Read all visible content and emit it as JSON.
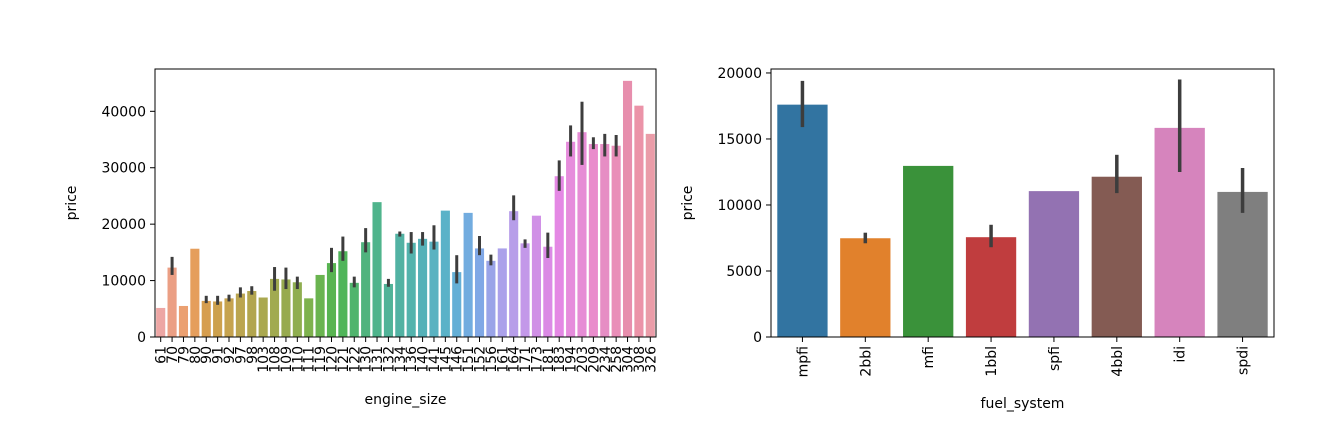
{
  "chart_data": [
    {
      "type": "bar",
      "xlabel": "engine_size",
      "ylabel": "price",
      "ylim": [
        0,
        47500
      ],
      "yticks": [
        0,
        10000,
        20000,
        30000,
        40000
      ],
      "grid": false,
      "categories": [
        "61",
        "70",
        "79",
        "80",
        "90",
        "91",
        "92",
        "97",
        "98",
        "103",
        "108",
        "109",
        "110",
        "111",
        "119",
        "120",
        "121",
        "122",
        "130",
        "131",
        "132",
        "134",
        "136",
        "140",
        "141",
        "145",
        "146",
        "151",
        "152",
        "156",
        "161",
        "164",
        "171",
        "173",
        "181",
        "183",
        "194",
        "203",
        "209",
        "234",
        "258",
        "304",
        "308",
        "326"
      ],
      "values": [
        5151,
        12300,
        5500,
        15645,
        6400,
        6300,
        6850,
        7700,
        8150,
        7000,
        10300,
        10200,
        9700,
        6850,
        11000,
        13100,
        15200,
        9600,
        16800,
        23900,
        9400,
        18300,
        16700,
        17400,
        16900,
        22400,
        11500,
        22000,
        15700,
        13500,
        15700,
        22300,
        16600,
        21500,
        16000,
        28500,
        34600,
        36300,
        34200,
        34200,
        33900,
        45400,
        41000,
        36000
      ],
      "error_low": [
        null,
        11000,
        null,
        null,
        6000,
        5700,
        6300,
        7000,
        7500,
        null,
        8200,
        8500,
        8500,
        null,
        null,
        11500,
        13500,
        8800,
        15000,
        null,
        8900,
        17800,
        14800,
        16200,
        15500,
        null,
        9500,
        null,
        14500,
        12700,
        null,
        20700,
        15800,
        null,
        14000,
        25900,
        32000,
        30500,
        33300,
        32000,
        32000,
        null,
        null,
        null
      ],
      "error_high": [
        null,
        14200,
        null,
        null,
        7300,
        7300,
        7500,
        8800,
        9000,
        null,
        12400,
        12300,
        10700,
        null,
        null,
        15800,
        17800,
        10700,
        19300,
        null,
        10300,
        18700,
        18600,
        18600,
        19800,
        null,
        14500,
        null,
        17900,
        14600,
        null,
        25100,
        17300,
        null,
        18500,
        31300,
        37500,
        41700,
        35400,
        36000,
        35800,
        null,
        null,
        null
      ],
      "colors": [
        "#eda6a4",
        "#eb9f84",
        "#eba071",
        "#e59e5c",
        "#d69e4f",
        "#cda14e",
        "#c6a34f",
        "#bba550",
        "#b2a54f",
        "#aaa850",
        "#a1aa50",
        "#97aa4f",
        "#8fae50",
        "#7eb24e",
        "#6ab450",
        "#58b451",
        "#4fb559",
        "#50b46d",
        "#50b37e",
        "#4fb48c",
        "#51b398",
        "#52b2a3",
        "#53b3ad",
        "#55b1b8",
        "#5ab2c1",
        "#5ab2c8",
        "#64afd6",
        "#72acdf",
        "#80a8e6",
        "#9aa4e8",
        "#aba1ea",
        "#b79ee9",
        "#c398e9",
        "#d090e6",
        "#db8ae5",
        "#e488e4",
        "#e68cdc",
        "#e68cd5",
        "#e98ccc",
        "#e68dc4",
        "#e98eb8",
        "#e78ead",
        "#eb93a8",
        "#ea9ca8"
      ]
    },
    {
      "type": "bar",
      "xlabel": "fuel_system",
      "ylabel": "price",
      "ylim": [
        0,
        20300
      ],
      "yticks": [
        0,
        5000,
        10000,
        15000,
        20000
      ],
      "grid": false,
      "categories": [
        "mpfi",
        "2bbl",
        "mfi",
        "1bbl",
        "spfi",
        "4bbl",
        "idi",
        "spdi"
      ],
      "values": [
        17600,
        7480,
        12960,
        7560,
        11050,
        12140,
        15840,
        10990
      ],
      "error_low": [
        15900,
        7100,
        null,
        6800,
        null,
        10900,
        12500,
        9400
      ],
      "error_high": [
        19400,
        7900,
        null,
        8500,
        null,
        13800,
        19500,
        12800
      ],
      "colors": [
        "#3274a1",
        "#e1812c",
        "#3a923a",
        "#c03d3e",
        "#9372b2",
        "#845b53",
        "#d684bd",
        "#7f7f7f"
      ]
    }
  ]
}
